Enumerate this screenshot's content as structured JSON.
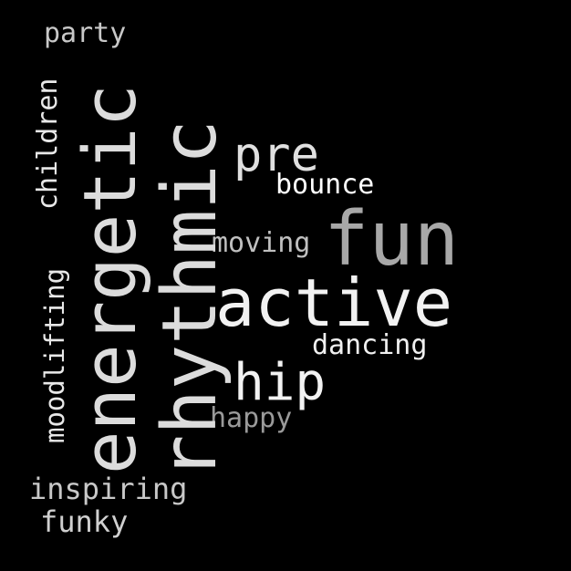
{
  "background": "#000000",
  "words": [
    {
      "key": "party",
      "text": "party",
      "color": "#c8c8c8",
      "orientation": "horizontal"
    },
    {
      "key": "children",
      "text": "children",
      "color": "#e8e8e8",
      "orientation": "vertical"
    },
    {
      "key": "energetic",
      "text": "energetic",
      "color": "#dcdcdc",
      "orientation": "vertical"
    },
    {
      "key": "rhythmic",
      "text": "rhythmic",
      "color": "#dcdcdc",
      "orientation": "vertical"
    },
    {
      "key": "pre",
      "text": "pre",
      "color": "#e0e0e0",
      "orientation": "horizontal"
    },
    {
      "key": "bounce",
      "text": "bounce",
      "color": "#ffffff",
      "orientation": "horizontal"
    },
    {
      "key": "fun",
      "text": "fun",
      "color": "#a8a8a8",
      "orientation": "horizontal"
    },
    {
      "key": "moving",
      "text": "moving",
      "color": "#c0c0c0",
      "orientation": "horizontal"
    },
    {
      "key": "moodlifting",
      "text": "moodlifting",
      "color": "#e8e8e8",
      "orientation": "vertical"
    },
    {
      "key": "active",
      "text": "active",
      "color": "#f2f2f2",
      "orientation": "horizontal"
    },
    {
      "key": "dancing",
      "text": "dancing",
      "color": "#f0f0f0",
      "orientation": "horizontal"
    },
    {
      "key": "hip",
      "text": "hip",
      "color": "#f2f2f2",
      "orientation": "horizontal"
    },
    {
      "key": "happy",
      "text": "happy",
      "color": "#9a9a9a",
      "orientation": "horizontal"
    },
    {
      "key": "inspiring",
      "text": "inspiring",
      "color": "#c8c8c8",
      "orientation": "horizontal"
    },
    {
      "key": "funky",
      "text": "funky",
      "color": "#d0d0d0",
      "orientation": "horizontal"
    }
  ]
}
